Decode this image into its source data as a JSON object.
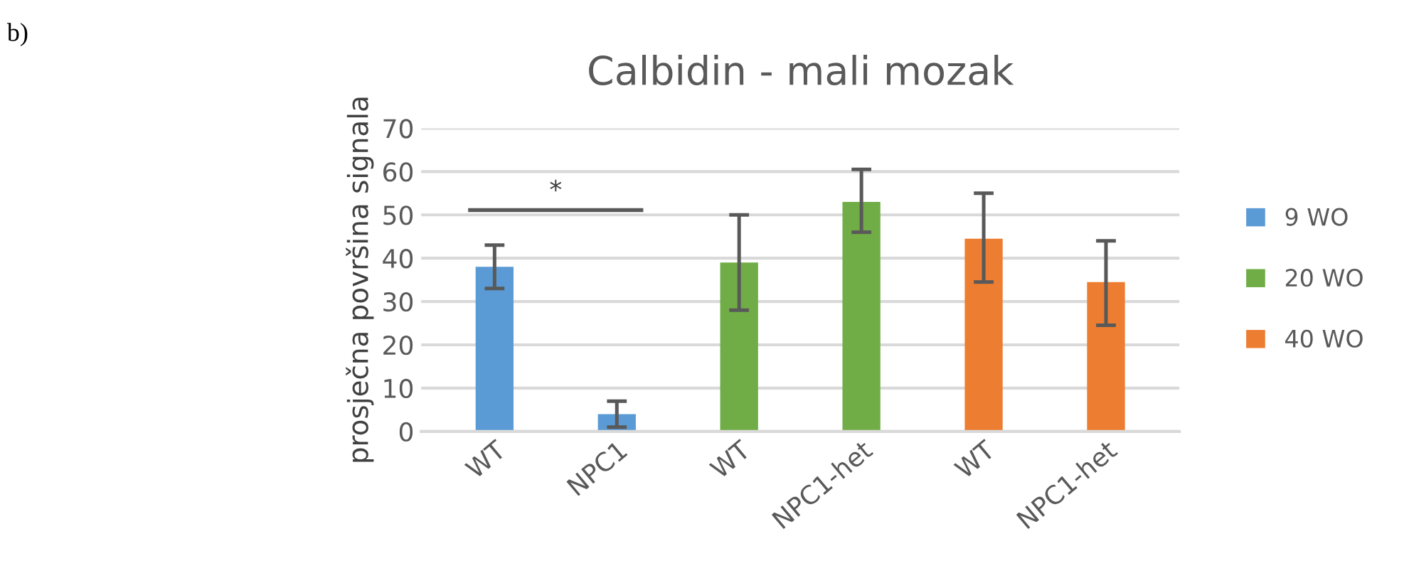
{
  "chart_data": {
    "type": "bar",
    "title": "Calbidin - mali mozak",
    "ylabel": "prosječna površina signala",
    "categories": [
      "WT",
      "NPC1",
      "WT",
      "NPC1-het",
      "WT",
      "NPC1-het"
    ],
    "series": [
      {
        "name": "9 WO",
        "color": "#5b9bd5",
        "values": [
          38,
          4,
          null,
          null,
          null,
          null
        ],
        "errors": [
          [
            33,
            43
          ],
          [
            1,
            7
          ],
          null,
          null,
          null,
          null
        ]
      },
      {
        "name": "20 WO",
        "color": "#70ad47",
        "values": [
          null,
          null,
          39,
          53,
          null,
          null
        ],
        "errors": [
          null,
          null,
          [
            28,
            50
          ],
          [
            46,
            60.5
          ],
          null,
          null
        ]
      },
      {
        "name": "40 WO",
        "color": "#ed7d31",
        "values": [
          null,
          null,
          null,
          null,
          44.5,
          34.5
        ],
        "errors": [
          null,
          null,
          null,
          null,
          [
            34.5,
            55
          ],
          [
            24.5,
            44
          ]
        ]
      }
    ],
    "ylim": [
      0,
      70
    ],
    "yticks": [
      0,
      10,
      20,
      30,
      40,
      50,
      60,
      70
    ],
    "grid": "y",
    "legend": "right",
    "annotations": [
      "b)",
      "*"
    ]
  }
}
